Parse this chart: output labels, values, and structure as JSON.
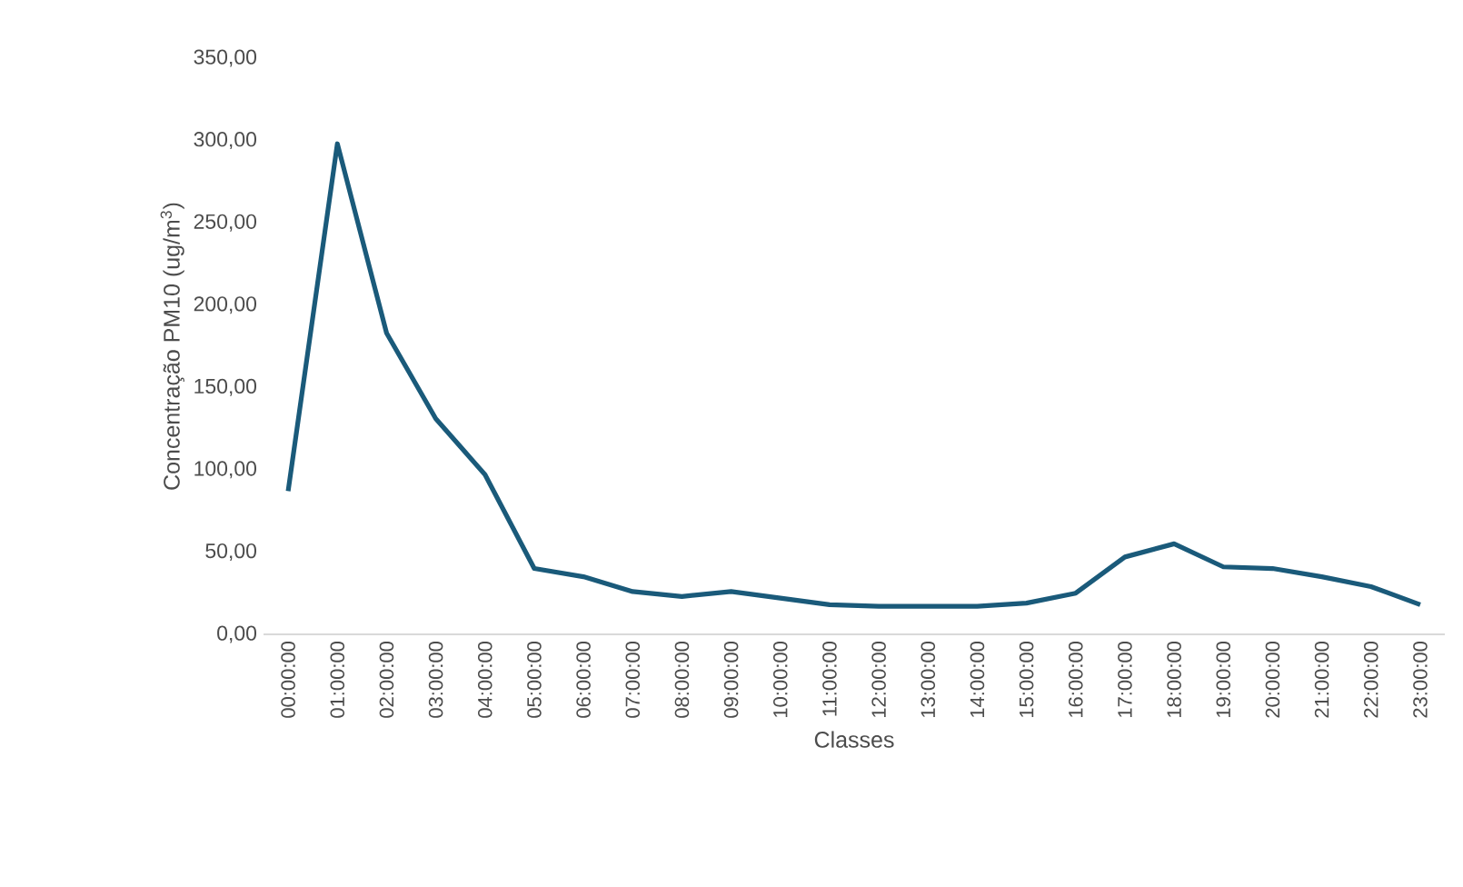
{
  "chart_data": {
    "type": "line",
    "xlabel": "Classes",
    "ylabel": "Concentração PM10 (ug/m$^{3}$)",
    "categories": [
      "00:00:00",
      "01:00:00",
      "02:00:00",
      "03:00:00",
      "04:00:00",
      "05:00:00",
      "06:00:00",
      "07:00:00",
      "08:00:00",
      "09:00:00",
      "10:00:00",
      "11:00:00",
      "12:00:00",
      "13:00:00",
      "14:00:00",
      "15:00:00",
      "16:00:00",
      "17:00:00",
      "18:00:00",
      "19:00:00",
      "20:00:00",
      "21:00:00",
      "22:00:00",
      "23:00:00"
    ],
    "series": [
      {
        "color": "#1a5a7a",
        "values": [
          87,
          298,
          183,
          131,
          97,
          40,
          35,
          26,
          23,
          26,
          22,
          18,
          17,
          17,
          17,
          19,
          25,
          47,
          55,
          41,
          40,
          35,
          29,
          18
        ]
      }
    ],
    "ylim": [
      0,
      350
    ],
    "yticks": [
      {
        "value": 0,
        "label": "0,00"
      },
      {
        "value": 50,
        "label": "50,00"
      },
      {
        "value": 100,
        "label": "100,00"
      },
      {
        "value": 150,
        "label": "150,00"
      },
      {
        "value": 200,
        "label": "200,00"
      },
      {
        "value": 250,
        "label": "250,00"
      },
      {
        "value": 300,
        "label": "300,00"
      },
      {
        "value": 350,
        "label": "350,00"
      }
    ],
    "grid": false,
    "legend": false,
    "marker": "none",
    "line_style": "solid"
  }
}
